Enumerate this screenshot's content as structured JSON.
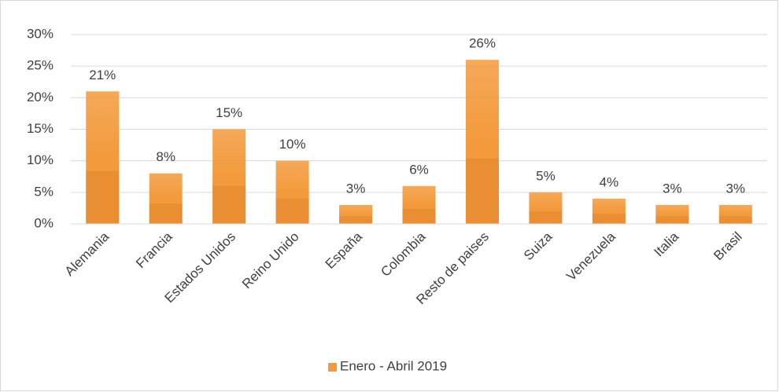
{
  "chart_data": {
    "type": "bar",
    "categories": [
      "Alemania",
      "Francia",
      "Estados Unidos",
      "Reino Unido",
      "España",
      "Colombia",
      "Resto de paises",
      "Suiza",
      "Venezuela",
      "Italia",
      "Brasil"
    ],
    "series": [
      {
        "name": "Enero - Abril 2019",
        "color": "#f39a3c",
        "values": [
          21,
          8,
          15,
          10,
          3,
          6,
          26,
          5,
          4,
          3,
          3
        ],
        "value_labels": [
          "21%",
          "8%",
          "15%",
          "10%",
          "3%",
          "6%",
          "26%",
          "5%",
          "4%",
          "3%",
          "3%"
        ]
      }
    ],
    "ylim": [
      0,
      30
    ],
    "yticks": [
      {
        "value": 0,
        "label": "0%"
      },
      {
        "value": 5,
        "label": "5%"
      },
      {
        "value": 10,
        "label": "10%"
      },
      {
        "value": 15,
        "label": "15%"
      },
      {
        "value": 20,
        "label": "20%"
      },
      {
        "value": 25,
        "label": "25%"
      },
      {
        "value": 30,
        "label": "30%"
      }
    ],
    "grid": true,
    "legend": "bottom"
  }
}
